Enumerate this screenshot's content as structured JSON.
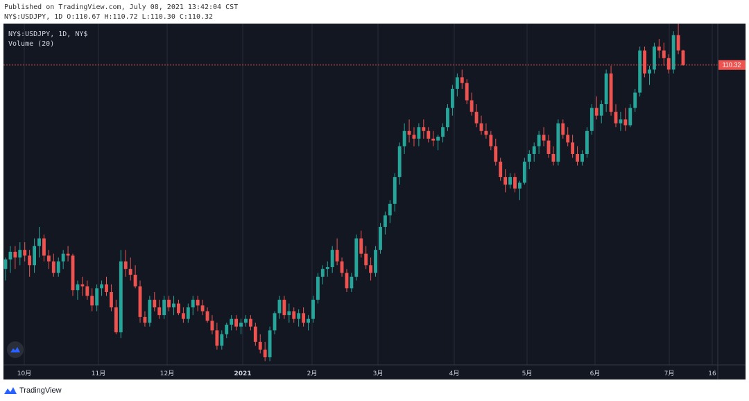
{
  "header": {
    "published": "Published on TradingView.com, July 08, 2021 13:42:04 CST",
    "ohlc_line": "NY$:USDJPY, 1D O:110.67 H:110.72 L:110.30 C:110.32"
  },
  "legend": {
    "symbol": "NY$:USDJPY, 1D, NY$",
    "volume": "Volume (20)"
  },
  "price_label": "110.32",
  "footer": {
    "brand": "TradingView"
  },
  "colors": {
    "background": "#131722",
    "up": "#26a69a",
    "down": "#ef5350",
    "grid": "#2a2e39",
    "axis_text": "#d1d4dc"
  },
  "chart_data": {
    "type": "candlestick",
    "x_ticks": [
      "10月",
      "11月",
      "12月",
      "2021",
      "2月",
      "3月",
      "4月",
      "5月",
      "6月",
      "7月",
      "16"
    ],
    "last_price": 110.32,
    "ylim": [
      102.5,
      111.4
    ],
    "candles": [
      [
        105.0,
        105.3,
        104.7,
        105.25
      ],
      [
        105.25,
        105.6,
        104.9,
        105.45
      ],
      [
        105.45,
        105.6,
        105.0,
        105.3
      ],
      [
        105.3,
        105.7,
        105.1,
        105.5
      ],
      [
        105.5,
        105.7,
        105.2,
        105.35
      ],
      [
        105.35,
        105.5,
        104.8,
        105.1
      ],
      [
        105.1,
        105.8,
        104.9,
        105.6
      ],
      [
        105.6,
        106.1,
        105.3,
        105.8
      ],
      [
        105.8,
        105.9,
        105.2,
        105.35
      ],
      [
        105.35,
        105.5,
        105.0,
        105.2
      ],
      [
        105.2,
        105.4,
        104.8,
        104.9
      ],
      [
        104.9,
        105.3,
        104.8,
        105.2
      ],
      [
        105.2,
        105.5,
        105.0,
        105.4
      ],
      [
        105.4,
        105.6,
        105.2,
        105.35
      ],
      [
        105.35,
        105.4,
        104.3,
        104.45
      ],
      [
        104.45,
        104.7,
        104.2,
        104.6
      ],
      [
        104.6,
        104.8,
        104.3,
        104.55
      ],
      [
        104.55,
        104.7,
        104.2,
        104.3
      ],
      [
        104.3,
        104.5,
        103.9,
        104.05
      ],
      [
        104.05,
        104.6,
        103.9,
        104.5
      ],
      [
        104.5,
        104.7,
        104.3,
        104.6
      ],
      [
        104.6,
        104.8,
        104.3,
        104.4
      ],
      [
        104.4,
        104.6,
        103.9,
        104.0
      ],
      [
        104.0,
        104.2,
        103.3,
        103.35
      ],
      [
        103.35,
        105.5,
        103.2,
        105.2
      ],
      [
        105.2,
        105.5,
        104.8,
        105.0
      ],
      [
        105.0,
        105.3,
        104.7,
        104.85
      ],
      [
        104.85,
        105.1,
        104.5,
        104.55
      ],
      [
        104.55,
        104.7,
        103.6,
        103.75
      ],
      [
        103.75,
        103.9,
        103.5,
        103.6
      ],
      [
        103.6,
        104.3,
        103.5,
        104.2
      ],
      [
        104.2,
        104.4,
        103.9,
        104.0
      ],
      [
        104.0,
        104.2,
        103.7,
        103.8
      ],
      [
        103.8,
        104.3,
        103.7,
        104.2
      ],
      [
        104.2,
        104.3,
        103.9,
        104.0
      ],
      [
        104.0,
        104.3,
        103.8,
        104.1
      ],
      [
        104.1,
        104.2,
        103.8,
        103.85
      ],
      [
        103.85,
        104.0,
        103.6,
        103.7
      ],
      [
        103.7,
        104.1,
        103.6,
        104.0
      ],
      [
        104.0,
        104.3,
        103.8,
        104.2
      ],
      [
        104.2,
        104.3,
        103.9,
        104.05
      ],
      [
        104.05,
        104.2,
        103.8,
        103.9
      ],
      [
        103.9,
        104.0,
        103.6,
        103.65
      ],
      [
        103.65,
        103.8,
        103.3,
        103.4
      ],
      [
        103.4,
        103.6,
        102.9,
        103.0
      ],
      [
        103.0,
        103.4,
        102.9,
        103.3
      ],
      [
        103.3,
        103.6,
        103.2,
        103.55
      ],
      [
        103.55,
        103.8,
        103.4,
        103.7
      ],
      [
        103.7,
        103.8,
        103.4,
        103.5
      ],
      [
        103.5,
        103.7,
        103.3,
        103.6
      ],
      [
        103.6,
        103.8,
        103.5,
        103.7
      ],
      [
        103.7,
        103.8,
        103.4,
        103.5
      ],
      [
        103.5,
        103.6,
        103.0,
        103.1
      ],
      [
        103.1,
        103.3,
        102.8,
        102.9
      ],
      [
        102.9,
        103.1,
        102.6,
        102.7
      ],
      [
        102.7,
        103.5,
        102.6,
        103.4
      ],
      [
        103.4,
        103.9,
        103.3,
        103.85
      ],
      [
        103.85,
        104.3,
        103.7,
        104.2
      ],
      [
        104.2,
        104.3,
        103.7,
        103.8
      ],
      [
        103.8,
        104.1,
        103.6,
        103.9
      ],
      [
        103.9,
        104.0,
        103.6,
        103.7
      ],
      [
        103.7,
        103.95,
        103.5,
        103.85
      ],
      [
        103.85,
        104.0,
        103.5,
        103.6
      ],
      [
        103.6,
        103.8,
        103.4,
        103.7
      ],
      [
        103.7,
        104.3,
        103.6,
        104.2
      ],
      [
        104.2,
        104.9,
        104.1,
        104.8
      ],
      [
        104.8,
        105.1,
        104.6,
        105.0
      ],
      [
        105.0,
        105.2,
        104.8,
        105.05
      ],
      [
        105.05,
        105.6,
        104.9,
        105.5
      ],
      [
        105.5,
        105.8,
        105.1,
        105.2
      ],
      [
        105.2,
        105.3,
        104.8,
        104.9
      ],
      [
        104.9,
        105.0,
        104.4,
        104.5
      ],
      [
        104.5,
        104.9,
        104.4,
        104.8
      ],
      [
        104.8,
        105.9,
        104.7,
        105.8
      ],
      [
        105.8,
        106.0,
        105.3,
        105.4
      ],
      [
        105.4,
        105.6,
        105.0,
        105.1
      ],
      [
        105.1,
        105.3,
        104.7,
        104.9
      ],
      [
        104.9,
        105.6,
        104.8,
        105.5
      ],
      [
        105.5,
        106.2,
        105.4,
        106.1
      ],
      [
        106.1,
        106.5,
        105.9,
        106.4
      ],
      [
        106.4,
        106.8,
        106.2,
        106.7
      ],
      [
        106.7,
        107.5,
        106.5,
        107.4
      ],
      [
        107.4,
        108.3,
        107.2,
        108.2
      ],
      [
        108.2,
        108.8,
        108.0,
        108.6
      ],
      [
        108.6,
        108.9,
        108.3,
        108.5
      ],
      [
        108.5,
        108.7,
        108.2,
        108.4
      ],
      [
        108.4,
        108.8,
        108.2,
        108.7
      ],
      [
        108.7,
        108.9,
        108.4,
        108.6
      ],
      [
        108.6,
        108.7,
        108.3,
        108.4
      ],
      [
        108.4,
        108.6,
        108.2,
        108.35
      ],
      [
        108.35,
        108.5,
        108.1,
        108.45
      ],
      [
        108.45,
        108.8,
        108.3,
        108.7
      ],
      [
        108.7,
        109.3,
        108.6,
        109.2
      ],
      [
        109.2,
        109.8,
        109.0,
        109.7
      ],
      [
        109.7,
        110.1,
        109.5,
        110.0
      ],
      [
        110.0,
        110.2,
        109.7,
        109.85
      ],
      [
        109.85,
        109.95,
        109.3,
        109.4
      ],
      [
        109.4,
        109.6,
        109.0,
        109.1
      ],
      [
        109.1,
        109.3,
        108.7,
        108.8
      ],
      [
        108.8,
        109.0,
        108.5,
        108.6
      ],
      [
        108.6,
        108.8,
        108.4,
        108.5
      ],
      [
        108.5,
        108.6,
        108.1,
        108.2
      ],
      [
        108.2,
        108.4,
        107.7,
        107.8
      ],
      [
        107.8,
        107.9,
        107.3,
        107.4
      ],
      [
        107.4,
        107.6,
        107.0,
        107.2
      ],
      [
        107.2,
        107.5,
        107.1,
        107.4
      ],
      [
        107.4,
        107.5,
        107.0,
        107.1
      ],
      [
        107.1,
        107.3,
        106.8,
        107.25
      ],
      [
        107.25,
        107.9,
        107.2,
        107.8
      ],
      [
        107.8,
        108.1,
        107.6,
        108.0
      ],
      [
        108.0,
        108.3,
        107.8,
        108.2
      ],
      [
        108.2,
        108.6,
        108.0,
        108.5
      ],
      [
        108.5,
        108.7,
        108.2,
        108.35
      ],
      [
        108.35,
        108.5,
        107.9,
        108.0
      ],
      [
        108.0,
        108.2,
        107.7,
        107.8
      ],
      [
        107.8,
        108.9,
        107.7,
        108.8
      ],
      [
        108.8,
        108.9,
        108.4,
        108.5
      ],
      [
        108.5,
        108.7,
        108.2,
        108.3
      ],
      [
        108.3,
        108.5,
        107.9,
        108.0
      ],
      [
        108.0,
        108.2,
        107.7,
        107.8
      ],
      [
        107.8,
        108.1,
        107.7,
        108.0
      ],
      [
        108.0,
        108.7,
        107.9,
        108.6
      ],
      [
        108.6,
        109.3,
        108.5,
        109.2
      ],
      [
        109.2,
        109.5,
        108.9,
        109.0
      ],
      [
        109.0,
        109.4,
        108.8,
        109.3
      ],
      [
        109.3,
        110.2,
        109.1,
        110.1
      ],
      [
        110.1,
        110.3,
        109.0,
        109.1
      ],
      [
        109.1,
        109.3,
        108.7,
        108.8
      ],
      [
        108.8,
        109.1,
        108.6,
        108.9
      ],
      [
        108.9,
        109.2,
        108.6,
        108.75
      ],
      [
        108.75,
        109.3,
        108.7,
        109.2
      ],
      [
        109.2,
        109.7,
        109.1,
        109.6
      ],
      [
        109.6,
        110.8,
        109.5,
        110.7
      ],
      [
        110.7,
        110.8,
        110.0,
        110.1
      ],
      [
        110.1,
        110.3,
        109.8,
        110.2
      ],
      [
        110.2,
        110.9,
        110.1,
        110.8
      ],
      [
        110.8,
        111.0,
        110.5,
        110.7
      ],
      [
        110.7,
        110.9,
        110.3,
        110.5
      ],
      [
        110.5,
        110.6,
        110.1,
        110.2
      ],
      [
        110.2,
        111.2,
        110.1,
        111.1
      ],
      [
        111.1,
        111.4,
        110.6,
        110.7
      ],
      [
        110.7,
        110.72,
        110.3,
        110.32
      ]
    ]
  }
}
